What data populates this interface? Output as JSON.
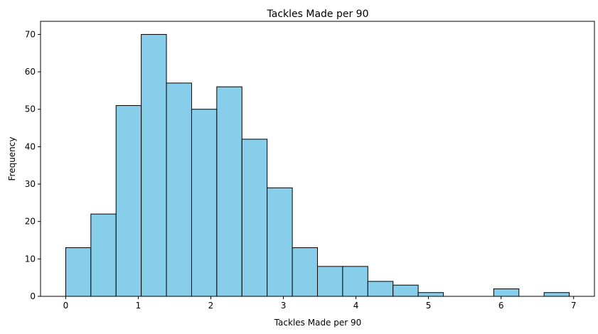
{
  "chart_data": {
    "type": "bar",
    "title": "Tackles Made per 90",
    "xlabel": "Tackles Made per 90",
    "ylabel": "Frequency",
    "bin_edges": [
      0.0,
      0.347,
      0.694,
      1.041,
      1.388,
      1.735,
      2.082,
      2.429,
      2.776,
      3.123,
      3.47,
      3.817,
      4.164,
      4.511,
      4.858,
      5.205,
      5.552,
      5.899,
      6.246,
      6.593,
      6.94
    ],
    "values": [
      13,
      22,
      51,
      70,
      57,
      50,
      56,
      42,
      29,
      13,
      8,
      8,
      4,
      3,
      1,
      0,
      0,
      2,
      0,
      1
    ],
    "xlim": [
      -0.347,
      7.287
    ],
    "ylim": [
      0,
      73.5
    ],
    "xticks": [
      0,
      1,
      2,
      3,
      4,
      5,
      6,
      7
    ],
    "yticks": [
      0,
      10,
      20,
      30,
      40,
      50,
      60,
      70
    ],
    "bar_color": "#87CEEB",
    "edge_color": "#000000",
    "grid": false,
    "legend": false
  }
}
